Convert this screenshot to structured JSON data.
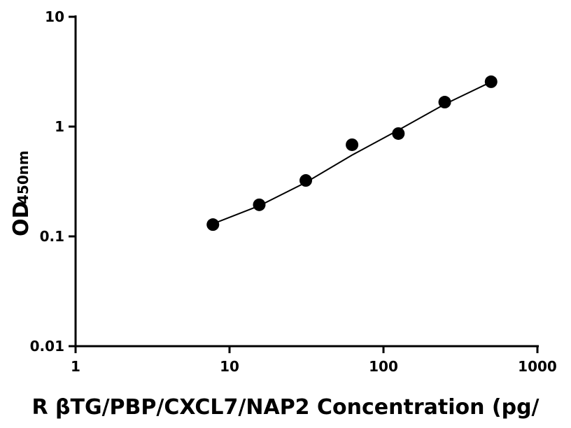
{
  "chart_data": {
    "type": "scatter",
    "xlabel": "R βTG/PBP/CXCL7/NAP2 Concentration (pg/",
    "ylabel": "OD",
    "ylabel_sub": "450nm",
    "xscale": "log",
    "yscale": "log",
    "xlim": [
      1,
      1000
    ],
    "ylim": [
      0.01,
      10
    ],
    "xticks": [
      1,
      10,
      100,
      1000
    ],
    "yticks": [
      0.01,
      0.1,
      1,
      10
    ],
    "series": [
      {
        "color": "#000000",
        "marker": "circle",
        "x": [
          7.8,
          15.6,
          31.3,
          62.5,
          125,
          250,
          500
        ],
        "values": [
          0.128,
          0.194,
          0.323,
          0.683,
          0.864,
          1.67,
          2.56
        ]
      },
      {
        "color": "#000000",
        "marker": "line",
        "x": [
          7.8,
          15.6,
          31.3,
          62.5,
          125,
          250,
          500
        ],
        "values": [
          0.13,
          0.19,
          0.31,
          0.55,
          0.93,
          1.6,
          2.55
        ]
      }
    ]
  }
}
